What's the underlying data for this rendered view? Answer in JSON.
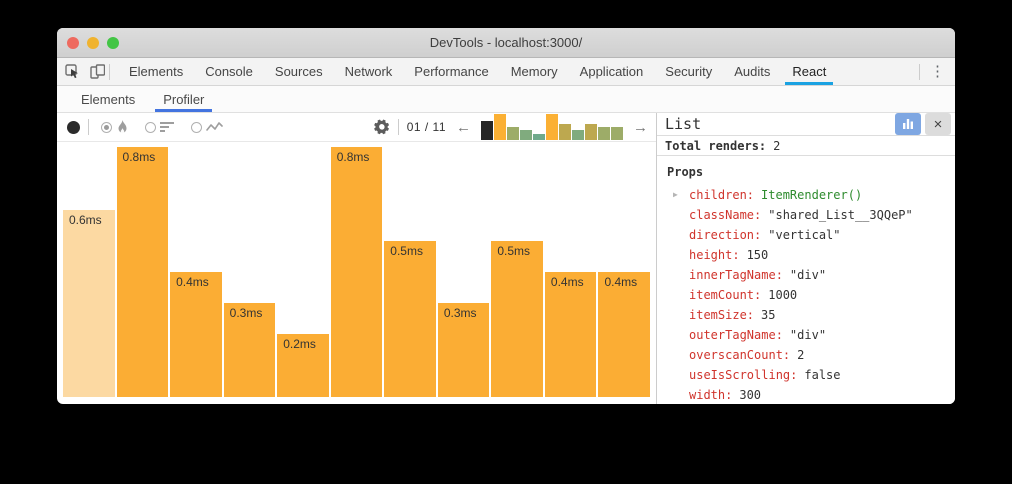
{
  "window": {
    "title": "DevTools - localhost:3000/"
  },
  "tabbar": {
    "tabs": [
      "Elements",
      "Console",
      "Sources",
      "Network",
      "Performance",
      "Memory",
      "Application",
      "Security",
      "Audits",
      "React"
    ],
    "active_tab": "React",
    "menu_icon": "⋮"
  },
  "subtabs": {
    "tabs": [
      "Elements",
      "Profiler"
    ],
    "active_tab": "Profiler"
  },
  "toolbar": {
    "pagination": "01 / 11",
    "prev_icon": "←",
    "next_icon": "→"
  },
  "chart_data": {
    "type": "bar",
    "title": "React Profiler render durations per commit",
    "unit": "ms",
    "values": [
      0.6,
      0.8,
      0.4,
      0.3,
      0.2,
      0.8,
      0.5,
      0.3,
      0.5,
      0.4,
      0.4
    ],
    "labels": [
      "0.6ms",
      "0.8ms",
      "0.4ms",
      "0.3ms",
      "0.2ms",
      "0.8ms",
      "0.5ms",
      "0.3ms",
      "0.5ms",
      "0.4ms",
      "0.4ms"
    ],
    "ylim": [
      0,
      0.8
    ],
    "selected_index": 0,
    "bar_color": "#fbad34",
    "selected_bar_color": "#fcd9a2",
    "snapshot_selector_colors": [
      "#262626",
      "#fbb034",
      "#9dac68",
      "#80ab7e",
      "#6faa8b",
      "#fbb034",
      "#bda84f",
      "#80ab7e",
      "#bda84f",
      "#9dac68",
      "#9dac68"
    ]
  },
  "panel": {
    "title": "List",
    "total_renders_label": "Total renders:",
    "total_renders_value": "2",
    "props_title": "Props",
    "close_icon": "×",
    "props": [
      {
        "key": "children",
        "value": "ItemRenderer()",
        "type": "function",
        "expandable": true
      },
      {
        "key": "className",
        "value": "\"shared_List__3QQeP\"",
        "type": "string"
      },
      {
        "key": "direction",
        "value": "\"vertical\"",
        "type": "string"
      },
      {
        "key": "height",
        "value": "150",
        "type": "number"
      },
      {
        "key": "innerTagName",
        "value": "\"div\"",
        "type": "string"
      },
      {
        "key": "itemCount",
        "value": "1000",
        "type": "number"
      },
      {
        "key": "itemSize",
        "value": "35",
        "type": "number"
      },
      {
        "key": "outerTagName",
        "value": "\"div\"",
        "type": "string"
      },
      {
        "key": "overscanCount",
        "value": "2",
        "type": "number"
      },
      {
        "key": "useIsScrolling",
        "value": "false",
        "type": "boolean"
      },
      {
        "key": "width",
        "value": "300",
        "type": "number"
      }
    ]
  },
  "colors": {
    "tab_underline": "#1aa2e2",
    "subtab_underline": "#4374e0",
    "panel_button_blue": "#7fa7e2",
    "prop_key_red": "#d0342c",
    "prop_function_green": "#2e8b2e",
    "traffic_red": "#ee6a5f",
    "traffic_yellow": "#f0b32f",
    "traffic_green": "#43c545"
  }
}
